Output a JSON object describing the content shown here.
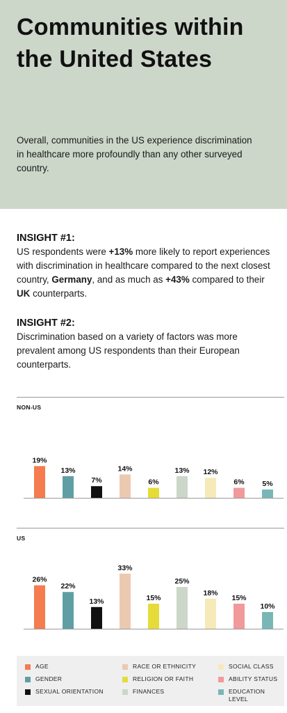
{
  "hero": {
    "title": "Communities within the United States",
    "subtitle": "Overall, communities in the US experience discrimination in healthcare more profoundly than any other surveyed country."
  },
  "insight1": {
    "title": "INSIGHT #1:",
    "parts": [
      {
        "t": "US respondents were ",
        "b": false
      },
      {
        "t": "+13%",
        "b": true
      },
      {
        "t": " more likely to report experiences with discrimination in healthcare compared to the next closest country, ",
        "b": false
      },
      {
        "t": "Germany",
        "b": true
      },
      {
        "t": ", and as much as ",
        "b": false
      },
      {
        "t": "+43%",
        "b": true
      },
      {
        "t": " compared to their ",
        "b": false
      },
      {
        "t": "UK",
        "b": true
      },
      {
        "t": " counterparts.",
        "b": false
      }
    ]
  },
  "insight2": {
    "title": "INSIGHT #2:",
    "body": "Discrimination based on a variety of factors was more prevalent among US respondents than their European counterparts."
  },
  "chart_data": {
    "type": "bar",
    "categories": [
      "AGE",
      "GENDER",
      "SEXUAL ORIENTATION",
      "RACE OR ETHNICITY",
      "RELIGION OR FAITH",
      "FINANCES",
      "SOCIAL CLASS",
      "ABILITY STATUS",
      "EDUCATION LEVEL"
    ],
    "colors": [
      "#f47c4e",
      "#5f9fa3",
      "#111111",
      "#ebc9b1",
      "#e6dc39",
      "#ccd6c9",
      "#f5eab8",
      "#f19a9b",
      "#79b7b7"
    ],
    "series": [
      {
        "name": "NON-US",
        "values": [
          19,
          13,
          7,
          14,
          6,
          13,
          12,
          6,
          5
        ]
      },
      {
        "name": "US",
        "values": [
          26,
          22,
          13,
          33,
          15,
          25,
          18,
          15,
          10
        ]
      }
    ],
    "value_suffix": "%",
    "ylim": [
      0,
      33
    ],
    "legend_position": "bottom"
  }
}
